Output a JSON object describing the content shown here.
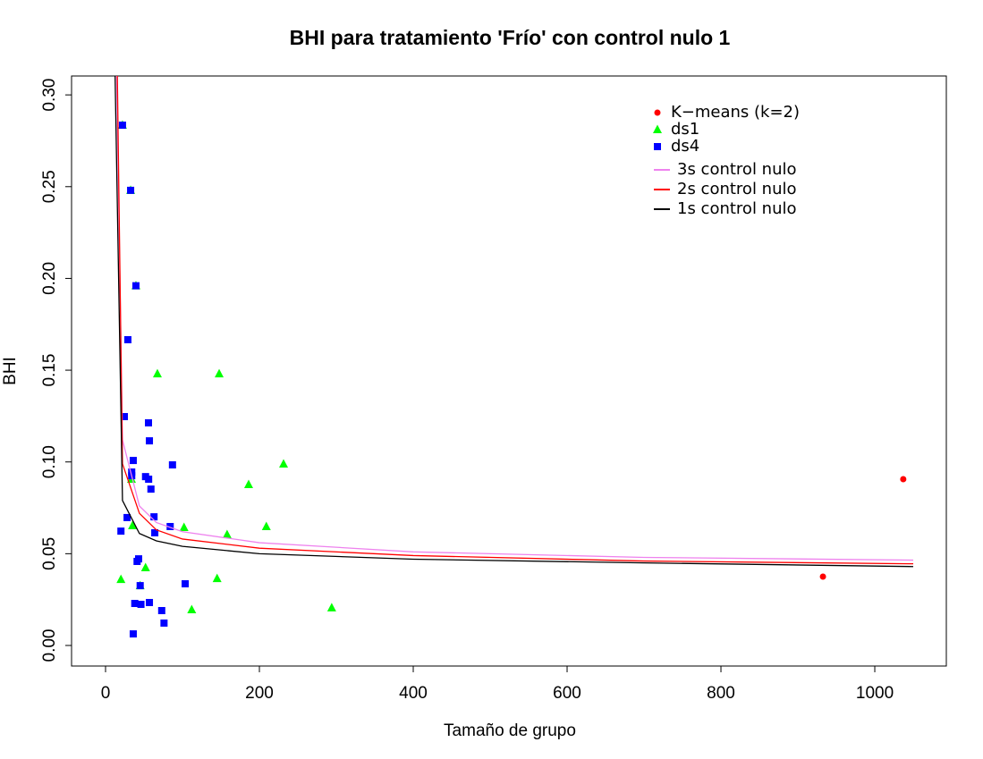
{
  "chart_data": {
    "type": "scatter",
    "title": "BHI para tratamiento 'Frío' con control nulo 1",
    "xlabel": "Tamaño de grupo",
    "ylabel": "BHI",
    "xlim": [
      -44.2,
      1093
    ],
    "ylim": [
      -0.0112,
      0.3103
    ],
    "xticks": [
      0,
      200,
      400,
      600,
      800,
      1000
    ],
    "yticks": [
      {
        "value": 0,
        "label": "0.00"
      },
      {
        "value": 0.05,
        "label": "0.05"
      },
      {
        "value": 0.1,
        "label": "0.10"
      },
      {
        "value": 0.15,
        "label": "0.15"
      },
      {
        "value": 0.2,
        "label": "0.20"
      },
      {
        "value": 0.25,
        "label": "0.25"
      },
      {
        "value": 0.3,
        "label": "0.30"
      }
    ],
    "legend": "topright",
    "series": [
      {
        "name": "K−means (k=2)",
        "kind": "points",
        "marker": "circle",
        "color": "#ff0000",
        "x": [
          932.6,
          1037
        ],
        "values": [
          0.0375,
          0.0906
        ]
      },
      {
        "name": "ds1",
        "kind": "points",
        "marker": "triangle",
        "color": "#00ff00",
        "x": [
          22,
          32.6,
          39.5,
          67.4,
          147.7,
          231.4,
          186,
          33.7,
          209,
          102,
          158,
          35,
          52,
          20,
          145,
          45,
          112,
          294
        ],
        "values": [
          0.2835,
          0.248,
          0.196,
          0.148,
          0.148,
          0.0989,
          0.0877,
          0.0906,
          0.0648,
          0.0643,
          0.0604,
          0.0653,
          0.0424,
          0.036,
          0.0365,
          0.0326,
          0.0195,
          0.0205
        ]
      },
      {
        "name": "ds4",
        "kind": "points",
        "marker": "square",
        "color": "#0000ff",
        "x": [
          22,
          32.6,
          39.5,
          29,
          24.4,
          55.8,
          57,
          36,
          87,
          34,
          34,
          52,
          56,
          59,
          28,
          63,
          84,
          20,
          64,
          43,
          41,
          45,
          103.5,
          38,
          46,
          57,
          73,
          76,
          36
        ],
        "values": [
          0.2835,
          0.248,
          0.196,
          0.1666,
          0.1247,
          0.1213,
          0.1115,
          0.1008,
          0.0984,
          0.0945,
          0.0925,
          0.092,
          0.0906,
          0.0852,
          0.0697,
          0.0701,
          0.0648,
          0.0623,
          0.0614,
          0.0472,
          0.0458,
          0.0326,
          0.0336,
          0.0229,
          0.0224,
          0.0234,
          0.019,
          0.0122,
          0.0063
        ]
      },
      {
        "name": "3s control nulo",
        "kind": "line",
        "color": "#ee82ee",
        "x": [
          14,
          22,
          44,
          66,
          100,
          200,
          400,
          700,
          1050
        ],
        "values": [
          0.32,
          0.112,
          0.076,
          0.067,
          0.062,
          0.056,
          0.051,
          0.048,
          0.0465
        ]
      },
      {
        "name": "2s control nulo",
        "kind": "line",
        "color": "#ff0000",
        "x": [
          15,
          22,
          44,
          66,
          100,
          200,
          400,
          700,
          1050
        ],
        "values": [
          0.32,
          0.099,
          0.072,
          0.063,
          0.058,
          0.053,
          0.049,
          0.046,
          0.0445
        ]
      },
      {
        "name": "1s control nulo",
        "kind": "line",
        "color": "#000000",
        "x": [
          12,
          22,
          44,
          66,
          100,
          200,
          400,
          700,
          1050
        ],
        "values": [
          0.32,
          0.079,
          0.061,
          0.057,
          0.054,
          0.05,
          0.047,
          0.045,
          0.043
        ]
      }
    ]
  }
}
